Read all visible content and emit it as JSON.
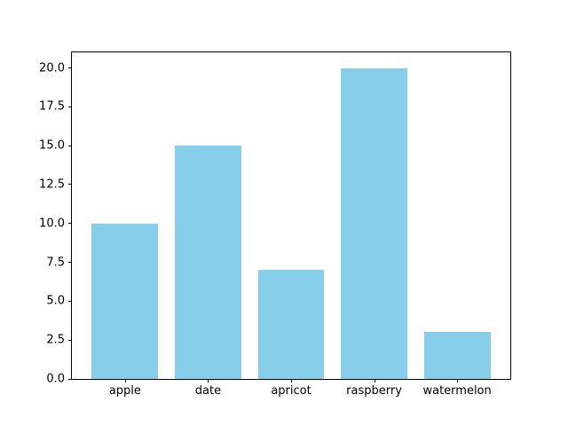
{
  "chart_data": {
    "type": "bar",
    "title": "",
    "xlabel": "",
    "ylabel": "",
    "categories": [
      "apple",
      "date",
      "apricot",
      "raspberry",
      "watermelon"
    ],
    "values": [
      10,
      15,
      7,
      20,
      3
    ],
    "ylim": [
      0,
      21
    ],
    "yticks": [
      0.0,
      2.5,
      5.0,
      7.5,
      10.0,
      12.5,
      15.0,
      17.5,
      20.0
    ],
    "ytick_labels": [
      "0.0",
      "2.5",
      "5.0",
      "7.5",
      "10.0",
      "12.5",
      "15.0",
      "17.5",
      "20.0"
    ],
    "grid": false,
    "legend": null,
    "bar_color": "#87CEEB"
  },
  "colors": {
    "background": "#ffffff",
    "spine": "#000000",
    "text": "#000000"
  }
}
